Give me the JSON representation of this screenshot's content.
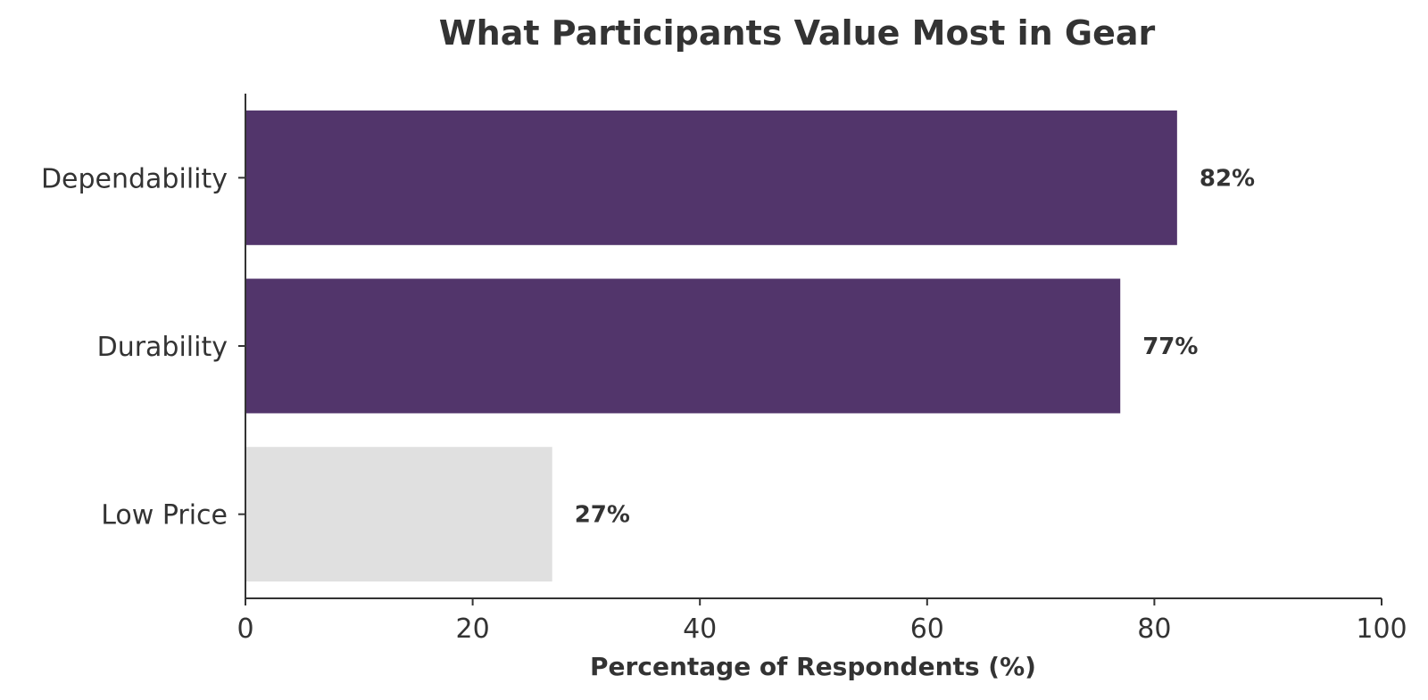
{
  "chart_data": {
    "type": "bar",
    "orientation": "horizontal",
    "title": "What Participants Value Most in Gear",
    "xlabel": "Percentage of Respondents (%)",
    "ylabel": "",
    "categories": [
      "Dependability",
      "Durability",
      "Low Price"
    ],
    "values": [
      82,
      77,
      27
    ],
    "value_labels": [
      "82%",
      "77%",
      "27%"
    ],
    "colors": [
      "#52356b",
      "#52356b",
      "#e0e0e0"
    ],
    "xlim": [
      0,
      100
    ],
    "xticks": [
      0,
      20,
      40,
      60,
      80,
      100
    ],
    "xtick_labels": [
      "0",
      "20",
      "40",
      "60",
      "80",
      "100"
    ],
    "grid": false,
    "legend": "none"
  }
}
